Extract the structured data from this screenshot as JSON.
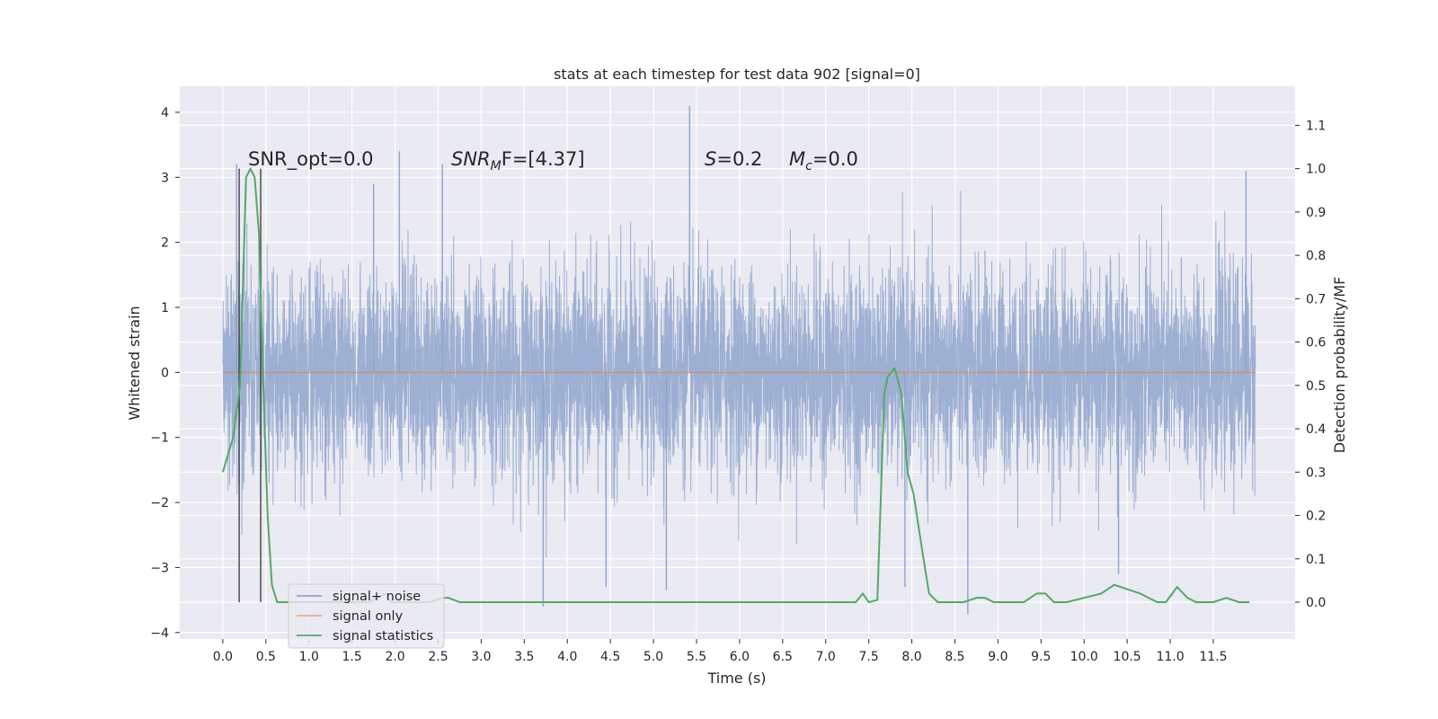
{
  "chart_data": {
    "type": "line",
    "title": "stats at each timestep for test data 902 [signal=0]",
    "xlabel": "Time (s)",
    "ylabel": "Whitened strain",
    "y2label": "Detection probability/MF",
    "xlim": [
      -0.5,
      12.45
    ],
    "ylim": [
      -4.1,
      4.4
    ],
    "y2lim": [
      -0.085,
      1.19
    ],
    "x_ticks": [
      "0.0",
      "0.5",
      "1.0",
      "1.5",
      "2.0",
      "2.5",
      "3.0",
      "3.5",
      "4.0",
      "4.5",
      "5.0",
      "5.5",
      "6.0",
      "6.5",
      "7.0",
      "7.5",
      "8.0",
      "8.5",
      "9.0",
      "9.5",
      "10.0",
      "10.5",
      "11.0",
      "11.5"
    ],
    "y_ticks": [
      "4",
      "3",
      "2",
      "1",
      "0",
      "−1",
      "−2",
      "−3",
      "−4"
    ],
    "y2_ticks": [
      "1.1",
      "1.0",
      "0.9",
      "0.8",
      "0.7",
      "0.6",
      "0.5",
      "0.4",
      "0.3",
      "0.2",
      "0.1",
      "0.0"
    ],
    "grid": true,
    "legend_position": "lower-left",
    "annotations": {
      "snr_opt": "SNR_opt=0.0",
      "snr_mf_main": "SNR",
      "snr_mf_sub": "M",
      "snr_mf_rest": "F=[4.37]",
      "s_main": "S",
      "s_rest": "=0.2",
      "mc_main": "M",
      "mc_sub": "c",
      "mc_rest": "=0.0"
    },
    "vlines_x": [
      0.19,
      0.44
    ],
    "noise_envelope": {
      "x_range": [
        0.0,
        11.99
      ],
      "typical_range": [
        -1.5,
        1.5
      ],
      "peak_spikes": [
        [
          0.16,
          3.2
        ],
        [
          1.75,
          2.9
        ],
        [
          2.05,
          3.4
        ],
        [
          2.55,
          3.2
        ],
        [
          5.42,
          4.1
        ],
        [
          11.88,
          3.1
        ],
        [
          3.72,
          -3.6
        ],
        [
          4.45,
          -3.3
        ],
        [
          5.15,
          -3.35
        ],
        [
          8.65,
          -3.72
        ],
        [
          7.92,
          -3.3
        ],
        [
          10.4,
          -3.1
        ]
      ]
    },
    "series": [
      {
        "name": "signal+ noise",
        "color": "#8fa4cc"
      },
      {
        "name": "signal only",
        "color": "#dd8452",
        "x": [
          0.0,
          11.99
        ],
        "y": [
          0.0,
          0.0
        ]
      },
      {
        "name": "signal statistics",
        "color": "#55a868",
        "axis": "right",
        "x": [
          0.0,
          0.12,
          0.2,
          0.27,
          0.32,
          0.37,
          0.42,
          0.47,
          0.52,
          0.57,
          0.63,
          0.7,
          0.9,
          1.2,
          1.5,
          1.7,
          1.8,
          1.88,
          1.96,
          2.1,
          2.4,
          2.55,
          2.62,
          2.75,
          3.0,
          3.5,
          4.0,
          4.5,
          5.0,
          5.5,
          6.0,
          6.5,
          6.8,
          7.0,
          7.2,
          7.35,
          7.43,
          7.5,
          7.6,
          7.68,
          7.72,
          7.8,
          7.88,
          7.95,
          8.02,
          8.12,
          8.2,
          8.3,
          8.45,
          8.6,
          8.75,
          8.85,
          8.95,
          9.1,
          9.3,
          9.45,
          9.55,
          9.65,
          9.8,
          10.0,
          10.2,
          10.35,
          10.5,
          10.65,
          10.85,
          10.95,
          11.08,
          11.2,
          11.3,
          11.5,
          11.65,
          11.8,
          11.92
        ],
        "y": [
          0.3,
          0.38,
          0.5,
          0.98,
          1.0,
          0.98,
          0.85,
          0.5,
          0.2,
          0.04,
          0.0,
          0.0,
          0.0,
          0.0,
          0.0,
          0.0,
          0.01,
          0.02,
          0.0,
          0.0,
          0.0,
          0.01,
          0.01,
          0.0,
          0.0,
          0.0,
          0.0,
          0.0,
          0.0,
          0.0,
          0.0,
          0.0,
          0.0,
          0.0,
          0.0,
          0.0,
          0.02,
          0.0,
          0.005,
          0.48,
          0.52,
          0.54,
          0.48,
          0.3,
          0.25,
          0.12,
          0.02,
          0.0,
          0.0,
          0.0,
          0.01,
          0.01,
          0.0,
          0.0,
          0.0,
          0.02,
          0.02,
          0.0,
          0.0,
          0.01,
          0.02,
          0.04,
          0.03,
          0.02,
          0.0,
          0.0,
          0.035,
          0.01,
          0.0,
          0.0,
          0.01,
          0.0,
          0.0
        ]
      }
    ]
  }
}
